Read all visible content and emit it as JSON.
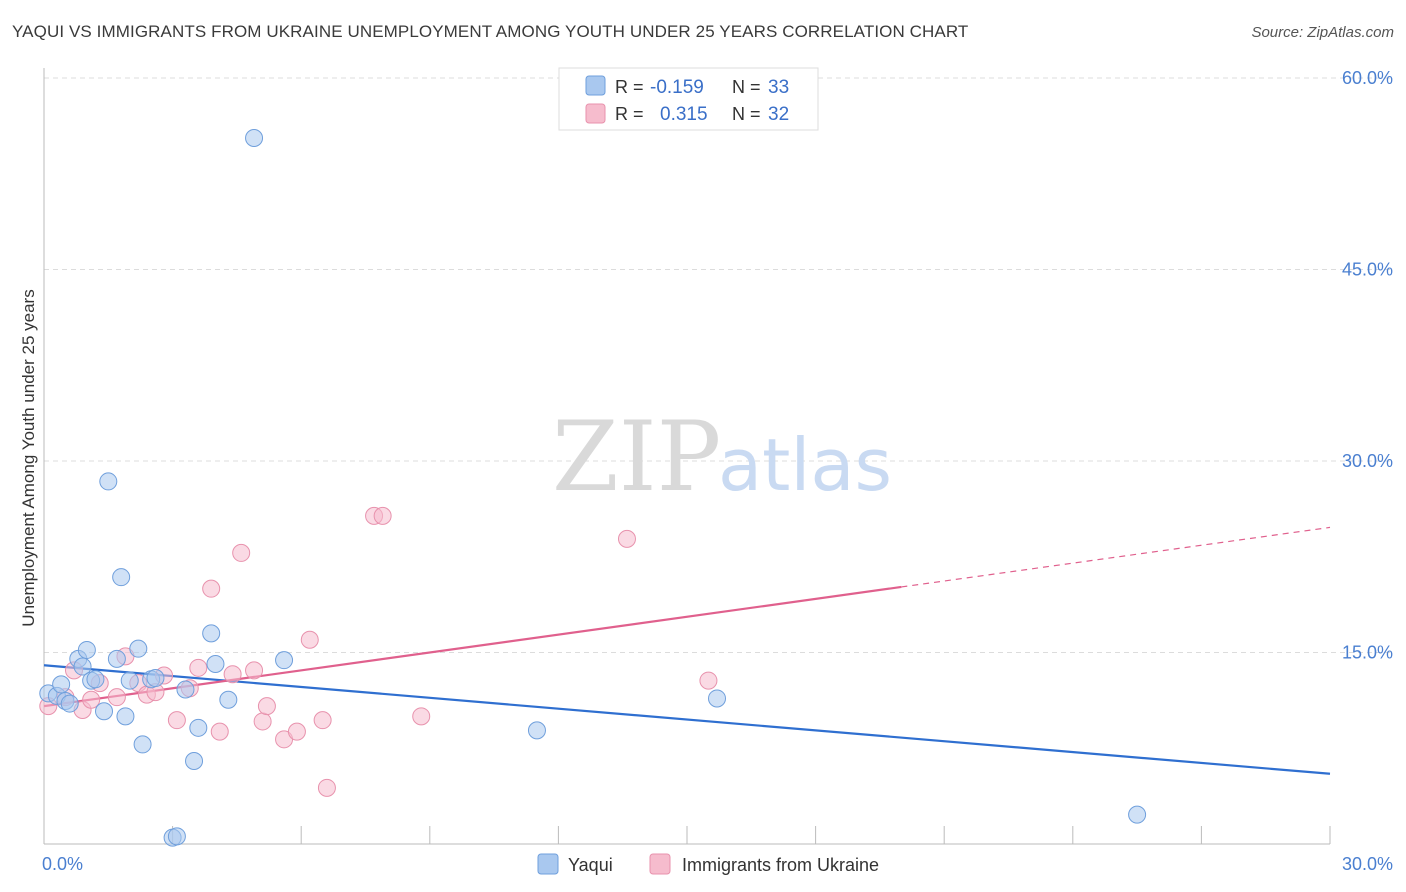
{
  "title": "YAQUI VS IMMIGRANTS FROM UKRAINE UNEMPLOYMENT AMONG YOUTH UNDER 25 YEARS CORRELATION CHART",
  "source": "Source: ZipAtlas.com",
  "watermark": {
    "zip": "ZIP",
    "atlas": "atlas"
  },
  "chart_data": {
    "type": "scatter",
    "xlabel": "",
    "ylabel": "Unemployment Among Youth under 25 years",
    "xlim": [
      0,
      30
    ],
    "ylim": [
      0,
      60
    ],
    "x_ticks": [
      {
        "v": 0,
        "label": "0.0%"
      },
      {
        "v": 30,
        "label": "30.0%"
      }
    ],
    "y_ticks": [
      {
        "v": 15,
        "label": "15.0%"
      },
      {
        "v": 30,
        "label": "30.0%"
      },
      {
        "v": 45,
        "label": "45.0%"
      },
      {
        "v": 60,
        "label": "60.0%"
      }
    ],
    "grid": true,
    "legend_placement": "top-center",
    "legend": [
      {
        "r_label": "R =",
        "r_value": "-0.159",
        "n_label": "N =",
        "n_value": "33"
      },
      {
        "r_label": "R =",
        "r_value": "0.315",
        "n_label": "N =",
        "n_value": "32"
      }
    ],
    "series": [
      {
        "name": "Yaqui",
        "color": "#a9c8ef",
        "stroke": "#6f9fdc",
        "trend_color": "#2f6fd0",
        "trend": {
          "x0": 0,
          "y0": 14.0,
          "x1": 30,
          "y1": 5.5,
          "solid_to": 30
        },
        "points": [
          [
            0.1,
            11.8
          ],
          [
            0.3,
            11.6
          ],
          [
            0.4,
            12.5
          ],
          [
            0.5,
            11.2
          ],
          [
            0.6,
            11.0
          ],
          [
            0.8,
            14.5
          ],
          [
            0.9,
            13.9
          ],
          [
            1.0,
            15.2
          ],
          [
            1.1,
            12.8
          ],
          [
            1.2,
            12.9
          ],
          [
            1.4,
            10.4
          ],
          [
            1.5,
            28.4
          ],
          [
            1.7,
            14.5
          ],
          [
            1.8,
            20.9
          ],
          [
            1.9,
            10.0
          ],
          [
            2.0,
            12.8
          ],
          [
            2.2,
            15.3
          ],
          [
            2.3,
            7.8
          ],
          [
            2.5,
            12.9
          ],
          [
            2.6,
            13.0
          ],
          [
            3.0,
            0.5
          ],
          [
            3.1,
            0.6
          ],
          [
            3.3,
            12.1
          ],
          [
            3.5,
            6.5
          ],
          [
            3.6,
            9.1
          ],
          [
            3.9,
            16.5
          ],
          [
            4.0,
            14.1
          ],
          [
            4.3,
            11.3
          ],
          [
            4.9,
            55.3
          ],
          [
            5.6,
            14.4
          ],
          [
            11.5,
            8.9
          ],
          [
            15.7,
            11.4
          ],
          [
            25.5,
            2.3
          ]
        ]
      },
      {
        "name": "Immigrants from Ukraine",
        "color": "#f6bccd",
        "stroke": "#e892ad",
        "trend_color": "#e0608d",
        "trend": {
          "x0": 0,
          "y0": 10.8,
          "x1": 30,
          "y1": 24.8,
          "solid_to": 20.0
        },
        "points": [
          [
            0.1,
            10.8
          ],
          [
            0.5,
            11.5
          ],
          [
            0.7,
            13.6
          ],
          [
            0.9,
            10.5
          ],
          [
            1.1,
            11.3
          ],
          [
            1.3,
            12.6
          ],
          [
            1.7,
            11.5
          ],
          [
            1.9,
            14.7
          ],
          [
            2.2,
            12.6
          ],
          [
            2.4,
            11.7
          ],
          [
            2.6,
            11.9
          ],
          [
            2.8,
            13.2
          ],
          [
            3.1,
            9.7
          ],
          [
            3.4,
            12.2
          ],
          [
            3.6,
            13.8
          ],
          [
            3.9,
            20.0
          ],
          [
            4.1,
            8.8
          ],
          [
            4.4,
            13.3
          ],
          [
            4.6,
            22.8
          ],
          [
            4.9,
            13.6
          ],
          [
            5.1,
            9.6
          ],
          [
            5.2,
            10.8
          ],
          [
            5.6,
            8.2
          ],
          [
            5.9,
            8.8
          ],
          [
            6.2,
            16.0
          ],
          [
            6.5,
            9.7
          ],
          [
            6.6,
            4.4
          ],
          [
            7.7,
            25.7
          ],
          [
            7.9,
            25.7
          ],
          [
            8.8,
            10.0
          ],
          [
            13.6,
            23.9
          ],
          [
            15.5,
            12.8
          ]
        ]
      }
    ]
  }
}
